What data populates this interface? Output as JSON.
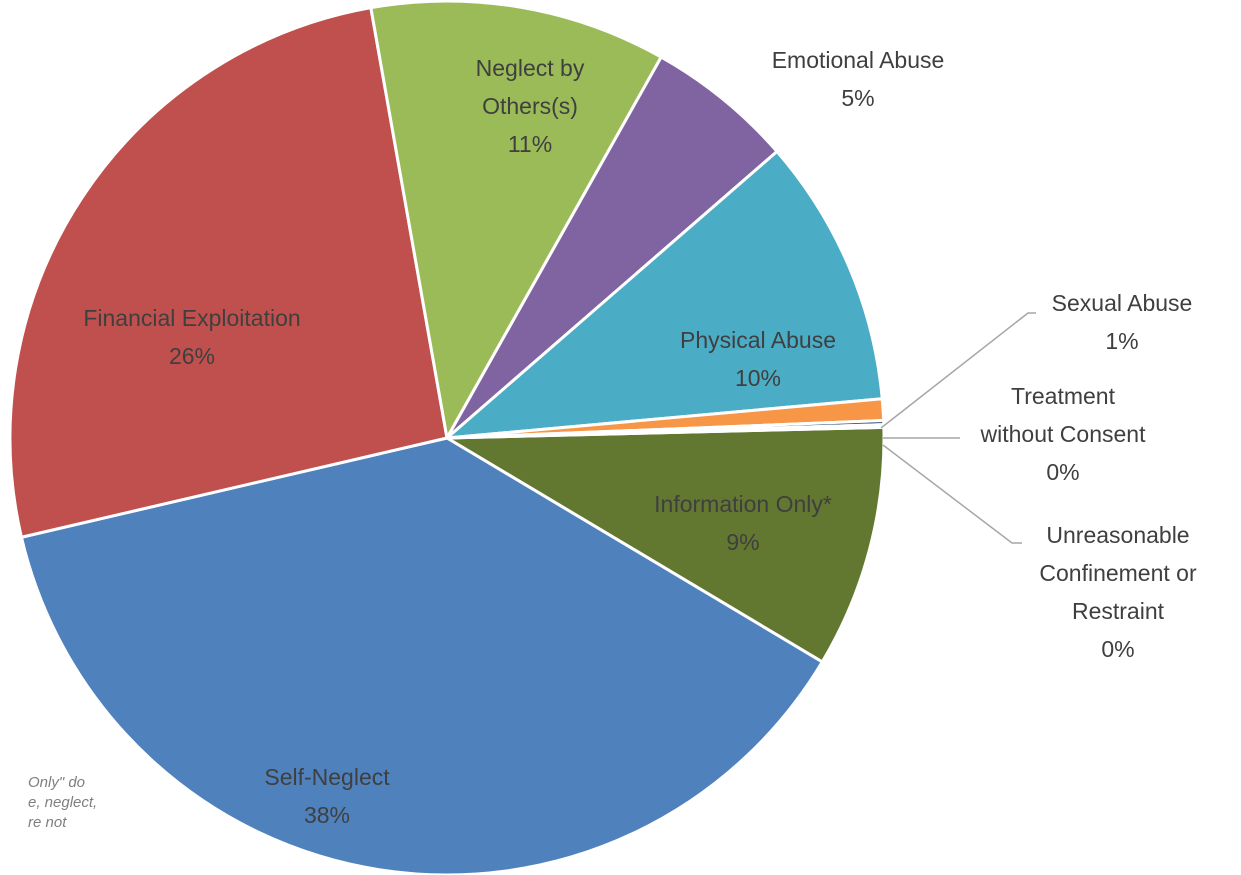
{
  "chart_data": {
    "type": "pie",
    "slices": [
      {
        "name": "Information Only*",
        "value": 9,
        "pct": "9%",
        "color": "#627730"
      },
      {
        "name": "Self-Neglect",
        "value": 38,
        "pct": "38%",
        "color": "#4f81bd"
      },
      {
        "name": "Financial Exploitation",
        "value": 26,
        "pct": "26%",
        "color": "#c0504d"
      },
      {
        "name": "Neglect by Others(s)",
        "value": 11,
        "pct": "11%",
        "color": "#9bbb59"
      },
      {
        "name": "Emotional Abuse",
        "value": 5.5,
        "pct": "5%",
        "color": "#8064a2"
      },
      {
        "name": "Physical Abuse",
        "value": 10,
        "pct": "10%",
        "color": "#4bacc6"
      },
      {
        "name": "Sexual Abuse",
        "value": 0.8,
        "pct": "1%",
        "color": "#f79646"
      },
      {
        "name": "Treatment without Consent",
        "value": 0.15,
        "pct": "0%",
        "color": "#2c4d75"
      },
      {
        "name": "Unreasonable Confinement or Restraint",
        "value": 0.1,
        "pct": "0%",
        "color": "#772c2a"
      }
    ],
    "footnote": [
      "Only\" do",
      "e, neglect,",
      "re not"
    ]
  }
}
